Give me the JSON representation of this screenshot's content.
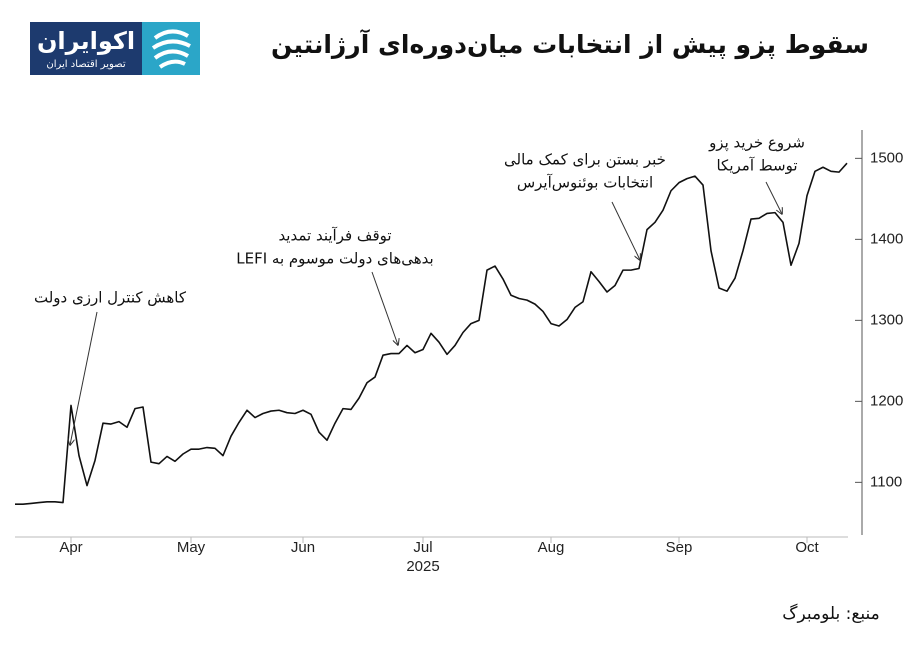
{
  "logo": {
    "name": "اکوایران",
    "tagline": "تصویر اقتصاد ایران"
  },
  "chart_data": {
    "type": "line",
    "title": "سقوط پزو پیش از انتخابات میان‌دوره‌ای آرژانتین",
    "source": "منبع: بلومبرگ",
    "xlabel": "2025",
    "categories": [
      null,
      null,
      null,
      null,
      null,
      null,
      null,
      "Apr",
      null,
      null,
      null,
      null,
      null,
      null,
      null,
      null,
      null,
      null,
      null,
      null,
      null,
      null,
      "May",
      null,
      null,
      null,
      null,
      null,
      null,
      null,
      null,
      null,
      null,
      null,
      null,
      null,
      "Jun",
      null,
      null,
      null,
      null,
      null,
      null,
      null,
      null,
      null,
      null,
      null,
      null,
      null,
      null,
      "Jul",
      null,
      null,
      null,
      null,
      null,
      null,
      null,
      null,
      null,
      null,
      null,
      null,
      null,
      null,
      null,
      "Aug",
      null,
      null,
      null,
      null,
      null,
      null,
      null,
      null,
      null,
      null,
      null,
      null,
      null,
      null,
      null,
      "Sep",
      null,
      null,
      null,
      null,
      null,
      null,
      null,
      null,
      null,
      null,
      null,
      null,
      null,
      null,
      null,
      "Oct",
      null,
      null,
      null,
      null,
      null
    ],
    "values": [
      1073,
      1073,
      1074,
      1075,
      1076,
      1076,
      1075,
      1195,
      1133,
      1096,
      1127,
      1173,
      1172,
      1175,
      1168,
      1191,
      1193,
      1125,
      1123,
      1132,
      1126,
      1135,
      1141,
      1141,
      1143,
      1142,
      1133,
      1157,
      1174,
      1189,
      1180,
      1185,
      1188,
      1189,
      1186,
      1185,
      1189,
      1184,
      1162,
      1152,
      1173,
      1191,
      1190,
      1204,
      1223,
      1230,
      1257,
      1259,
      1259,
      1269,
      1260,
      1264,
      1284,
      1273,
      1258,
      1269,
      1285,
      1296,
      1300,
      1362,
      1367,
      1351,
      1331,
      1327,
      1325,
      1320,
      1311,
      1296,
      1293,
      1301,
      1316,
      1323,
      1360,
      1348,
      1335,
      1343,
      1362,
      1362,
      1364,
      1412,
      1421,
      1436,
      1460,
      1470,
      1475,
      1478,
      1467,
      1386,
      1340,
      1336,
      1352,
      1386,
      1425,
      1426,
      1432,
      1433,
      1421,
      1368,
      1395,
      1454,
      1484,
      1489,
      1484,
      1483,
      1494
    ],
    "color": "#111111",
    "ylim": [
      1035,
      1535
    ],
    "yticks": [
      1100,
      1200,
      1300,
      1400,
      1500
    ],
    "grid": false,
    "annotations": [
      {
        "lines": [
          "کاهش کنترل ارزی دولت"
        ]
      },
      {
        "lines": [
          "توقف فرآیند تمدید",
          "بدهی‌های دولت موسوم به LEFI"
        ]
      },
      {
        "lines": [
          "خبر بستن برای کمک مالی",
          "انتخابات بوئنوس‌آیرس"
        ]
      },
      {
        "lines": [
          "شروع خرید پزو",
          "توسط آمریکا"
        ]
      }
    ]
  }
}
